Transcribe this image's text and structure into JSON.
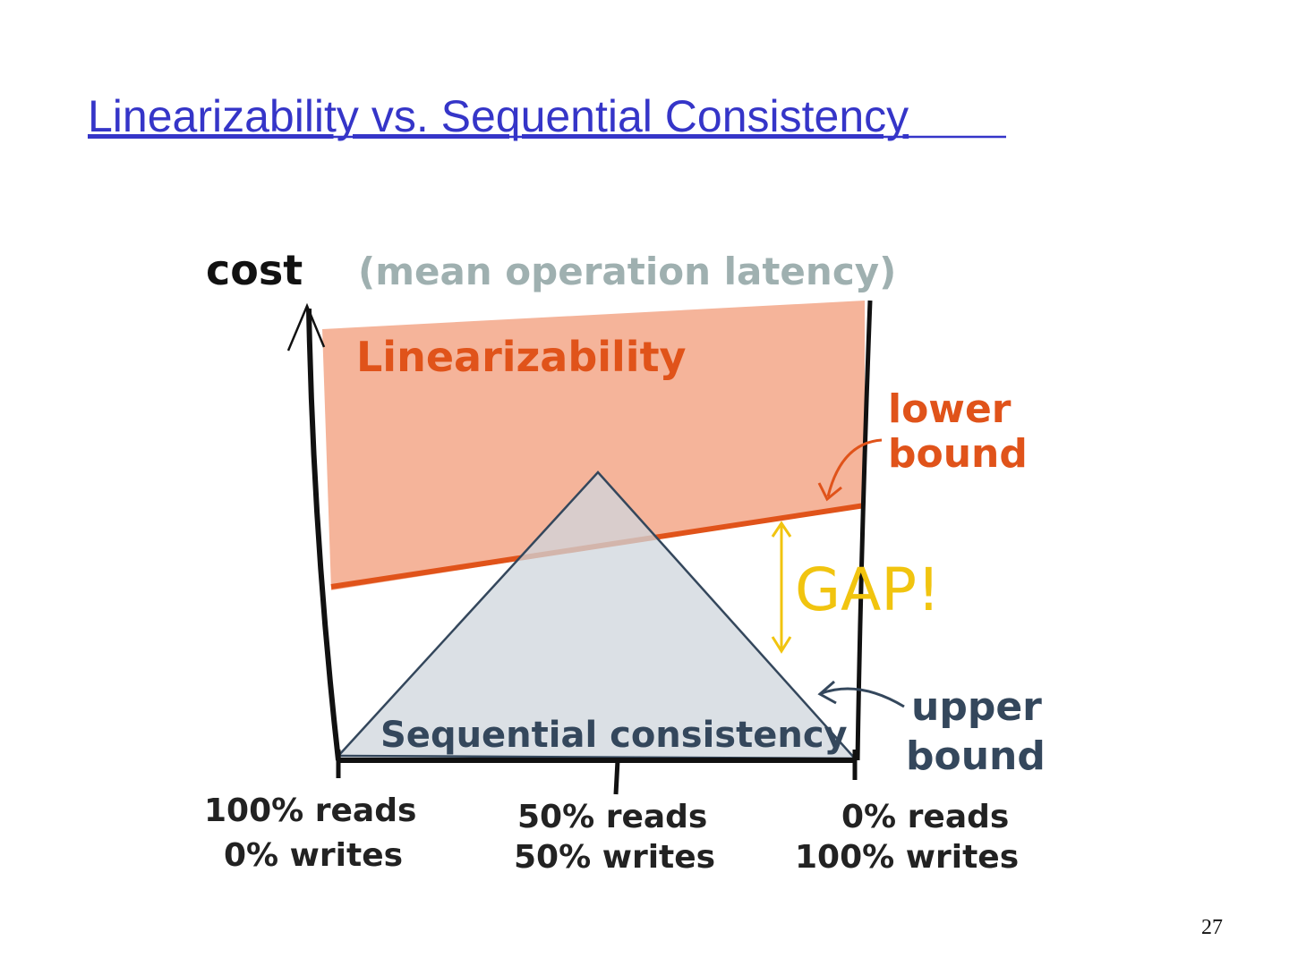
{
  "header": {
    "title": "Linearizability vs. Sequential Consistency"
  },
  "diagram": {
    "y_axis_label": "cost",
    "y_axis_note": "(mean operation latency)",
    "linearizability_label": "Linearizability",
    "lower_bound_label": [
      "lower",
      "bound"
    ],
    "gap_label": "GAP!",
    "sequential_label": "Sequential consistency",
    "upper_bound_label": [
      "upper",
      "bound"
    ],
    "x_labels": [
      {
        "reads": "100% reads",
        "writes": "0% writes"
      },
      {
        "reads": "50% reads",
        "writes": "50% writes"
      },
      {
        "reads": "0% reads",
        "writes": "100% writes"
      }
    ]
  },
  "page_number": "27"
}
